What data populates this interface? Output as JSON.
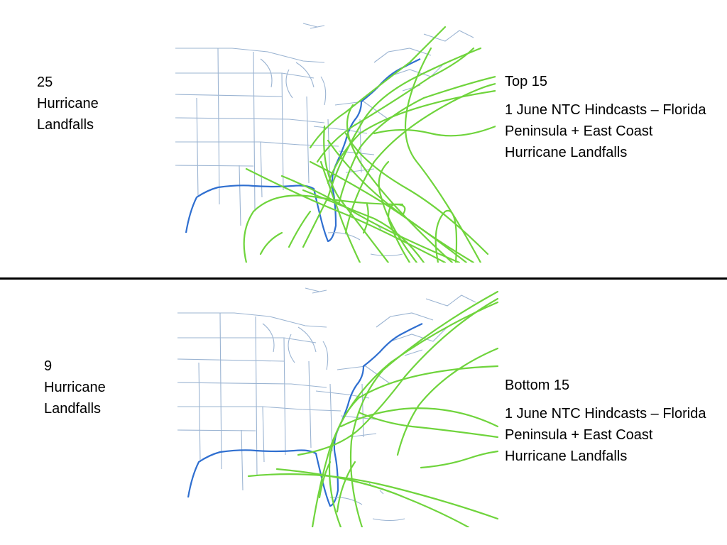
{
  "top_panel": {
    "count": "25",
    "count_lines": [
      "Hurricane",
      "Landfalls"
    ],
    "title": "Top 15",
    "description": "1 June NTC Hindcasts – Florida Peninsula + East Coast Hurricane Landfalls"
  },
  "bottom_panel": {
    "count": "9",
    "count_lines": [
      "Hurricane",
      "Landfalls"
    ],
    "title": "Bottom 15",
    "description": "1 June NTC Hindcasts – Florida Peninsula + East Coast Hurricane Landfalls"
  },
  "colors": {
    "track": "#6fd43c",
    "state_border": "#9bb4d2",
    "coastline": "#2f6fd0",
    "divider": "#000000"
  }
}
